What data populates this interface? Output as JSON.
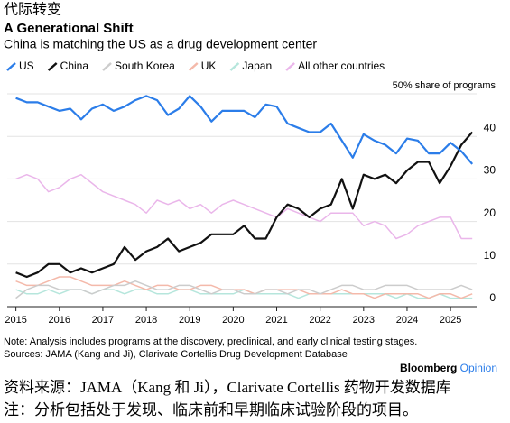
{
  "chart_data": {
    "type": "line",
    "header": "代际转变",
    "title": "A Generational Shift",
    "subtitle": "China is matching the US as a drug development center",
    "x": [
      2015,
      2015.25,
      2015.5,
      2015.75,
      2016,
      2016.25,
      2016.5,
      2016.75,
      2017,
      2017.25,
      2017.5,
      2017.75,
      2018,
      2018.25,
      2018.5,
      2018.75,
      2019,
      2019.25,
      2019.5,
      2019.75,
      2020,
      2020.25,
      2020.5,
      2020.75,
      2021,
      2021.25,
      2021.5,
      2021.75,
      2022,
      2022.25,
      2022.5,
      2022.75,
      2023,
      2023.25,
      2023.5,
      2023.75,
      2024,
      2024.25,
      2024.5,
      2024.75,
      2025,
      2025.25,
      2025.5
    ],
    "series": [
      {
        "name": "US",
        "color": "#2b7de9",
        "width": 2.2,
        "values": [
          49,
          48,
          48,
          47,
          46,
          46.5,
          44,
          46.5,
          47.5,
          46,
          47,
          48.5,
          49.5,
          48.5,
          45,
          46.5,
          49.5,
          47,
          43.5,
          46,
          46,
          46,
          44.5,
          47.5,
          47,
          43,
          42,
          41,
          41,
          43,
          39,
          35,
          40.5,
          39,
          38,
          36,
          39.5,
          39,
          36,
          36,
          38.5,
          36.5,
          33.5
        ]
      },
      {
        "name": "China",
        "color": "#111111",
        "width": 2.2,
        "values": [
          8,
          7,
          8,
          10,
          10,
          8,
          9,
          8,
          9,
          10,
          14,
          11,
          13,
          14,
          16,
          13,
          14,
          15,
          17,
          17,
          17,
          19,
          16,
          16,
          21,
          24,
          23,
          21,
          23,
          24,
          30,
          23,
          31,
          30,
          31,
          29,
          32,
          34,
          34,
          29,
          33,
          38,
          41
        ]
      },
      {
        "name": "South Korea",
        "color": "#cccccc",
        "width": 1.5,
        "values": [
          2,
          4,
          5,
          5,
          4,
          4,
          4,
          3,
          4,
          5,
          5,
          6,
          5,
          4,
          4,
          5,
          5,
          4,
          3,
          4,
          4,
          3,
          3,
          4,
          4,
          3,
          4,
          4,
          3,
          4,
          5,
          5,
          4,
          4,
          5,
          5,
          5,
          4,
          4,
          4,
          4,
          5,
          4
        ]
      },
      {
        "name": "UK",
        "color": "#f4b9aa",
        "width": 1.5,
        "values": [
          6,
          5,
          5,
          6,
          7,
          7,
          6,
          5,
          5,
          5,
          6,
          5,
          4,
          5,
          5,
          4,
          4,
          5,
          5,
          4,
          4,
          4,
          3,
          4,
          4,
          4,
          4,
          3,
          3,
          3,
          4,
          3,
          3,
          2,
          3,
          3,
          3,
          3,
          2,
          3,
          3,
          2,
          3
        ]
      },
      {
        "name": "Japan",
        "color": "#b6e6dc",
        "width": 1.5,
        "values": [
          4,
          3,
          3,
          4,
          3,
          4,
          4,
          3,
          4,
          4,
          3,
          4,
          4,
          3,
          3,
          4,
          4,
          3,
          3,
          3,
          3,
          4,
          3,
          3,
          3,
          3,
          2,
          3,
          3,
          3,
          3,
          3,
          3,
          3,
          3,
          2,
          3,
          2,
          2,
          3,
          2,
          2,
          2
        ]
      },
      {
        "name": "All other countries",
        "color": "#eab6ea",
        "width": 1.5,
        "values": [
          30,
          31,
          30,
          27,
          28,
          30,
          31,
          29,
          27,
          26,
          25,
          24,
          22,
          25,
          24,
          25,
          23,
          24,
          22,
          24,
          25,
          24,
          23,
          22,
          21,
          23,
          22,
          21,
          20,
          22,
          22,
          22,
          19,
          20,
          19,
          16,
          17,
          19,
          20,
          21,
          21,
          16,
          16
        ]
      }
    ],
    "xlim": [
      2014.8,
      2025.6
    ],
    "xticks": [
      2015,
      2016,
      2017,
      2018,
      2019,
      2020,
      2021,
      2022,
      2023,
      2024,
      2025
    ],
    "ylim": [
      0,
      50
    ],
    "yticks": [
      0,
      10,
      20,
      30,
      40,
      {
        "value": 50,
        "label": "50% share of programs"
      }
    ],
    "grid": true,
    "note": "Note: Analysis includes programs at the discovery, preclinical, and early clinical testing stages.",
    "source": "Sources: JAMA (Kang and Ji), Clarivate Cortellis Drug Development Database",
    "brand": "Bloomberg",
    "brand_suffix": "Opinion",
    "source_zh": "资料来源：JAMA（Kang 和 Ji），Clarivate Cortellis 药物开发数据库",
    "note_zh": "注：分析包括处于发现、临床前和早期临床试验阶段的项目。"
  }
}
